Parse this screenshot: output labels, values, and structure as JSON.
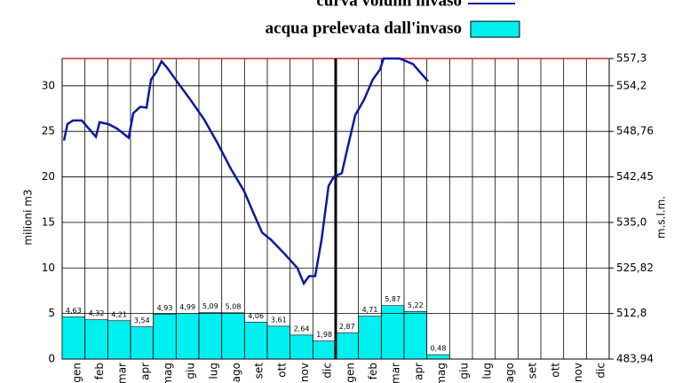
{
  "chart_data": {
    "type": "bar_line",
    "legend_line": "curva volumi invaso",
    "legend_bar": "acqua prelevata dall'invaso",
    "ylabel": "milioni m3",
    "y2label": "m.s.l.m.",
    "categories": [
      "gen",
      "feb",
      "mar",
      "apr",
      "mag",
      "giu",
      "lug",
      "ago",
      "set",
      "ott",
      "nov",
      "dic",
      "gen",
      "feb",
      "mar",
      "apr",
      "mag",
      "giu",
      "lug",
      "ago",
      "set",
      "ott",
      "nov",
      "dic"
    ],
    "bar_color": "#00f0f0",
    "values": [
      4.63,
      4.32,
      4.21,
      3.54,
      4.93,
      4.99,
      5.09,
      5.08,
      4.06,
      3.61,
      2.64,
      1.98,
      2.87,
      4.71,
      5.87,
      5.22,
      0.48,
      null,
      null,
      null,
      null,
      null,
      null,
      null
    ],
    "value_labels": [
      "4,63",
      "4,32",
      "4,21",
      "3,54",
      "4,93",
      "4,99",
      "5,09",
      "5,08",
      "4,06",
      "3,61",
      "2,64",
      "1,98",
      "2,87",
      "4,71",
      "5,87",
      "5,22",
      "0,48",
      null,
      null,
      null,
      null,
      null,
      null,
      null
    ],
    "line": {
      "color": "#0a1a9e",
      "x": [
        0.08,
        0.23,
        0.47,
        0.86,
        1.17,
        1.48,
        1.64,
        2.03,
        2.41,
        2.92,
        3.12,
        3.43,
        3.7,
        3.9,
        4.13,
        4.36,
        4.6,
        5.06,
        5.65,
        6.23,
        6.82,
        7.4,
        7.99,
        8.38,
        8.77,
        9.16,
        9.74,
        10.32,
        10.6,
        10.83,
        11.1,
        11.38,
        11.69,
        11.92,
        12.27,
        12.54,
        12.86,
        13.25,
        13.63,
        13.95,
        14.1,
        14.8,
        15.39,
        16.05
      ],
      "values": [
        24.0,
        25.8,
        26.2,
        26.2,
        25.3,
        24.4,
        26.0,
        25.8,
        25.3,
        24.3,
        27.0,
        27.7,
        27.6,
        30.7,
        31.5,
        32.7,
        32.0,
        30.4,
        28.4,
        26.3,
        23.7,
        20.9,
        18.4,
        16.1,
        13.9,
        13.1,
        11.6,
        10.0,
        8.3,
        9.1,
        9.1,
        13.1,
        19.0,
        20.0,
        20.4,
        23.4,
        26.8,
        28.5,
        30.7,
        31.8,
        33.0,
        33.0,
        32.4,
        30.5
      ]
    },
    "xlim": [
      0,
      24
    ],
    "ylim": [
      0,
      33
    ],
    "yticks": [
      0,
      5,
      10,
      15,
      20,
      25,
      30
    ],
    "y2ticks": [
      {
        "value": 483.94,
        "label": "483,94",
        "volume": 0
      },
      {
        "value": 512.8,
        "label": "512,8",
        "volume": 5
      },
      {
        "value": 525.82,
        "label": "525,82",
        "volume": 10
      },
      {
        "value": 535.0,
        "label": "535,0",
        "volume": 15
      },
      {
        "value": 542.45,
        "label": "542,45",
        "volume": 20
      },
      {
        "value": 548.76,
        "label": "548,76",
        "volume": 25
      },
      {
        "value": 554.2,
        "label": "554,2",
        "volume": 30
      },
      {
        "value": 557.3,
        "label": "557,3",
        "volume": 33
      }
    ],
    "grid": true
  }
}
